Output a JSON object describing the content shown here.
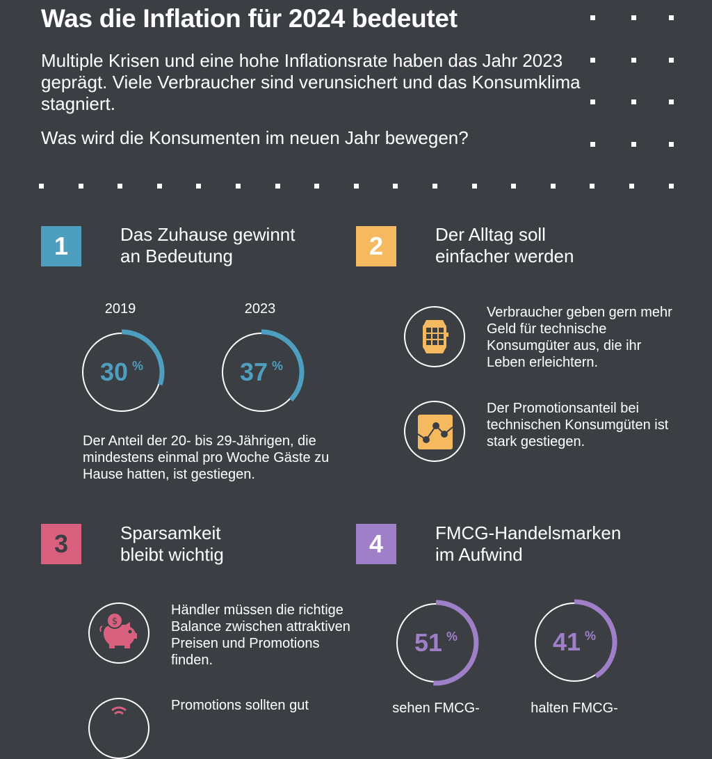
{
  "header": {
    "title": "Was die Inflation für 2024 bedeutet",
    "intro": "Multiple Krisen und eine hohe Inflationsrate haben das Jahr 2023 geprägt. Viele Verbraucher sind verunsichert und das Konsumklima stagniert.",
    "question": "Was wird die Konsumenten im neuen Jahr bewegen?"
  },
  "colors": {
    "background": "#3b3f44",
    "blue": "#4e9fbf",
    "orange": "#f5b95f",
    "pink": "#d9607f",
    "purple": "#a07fc9"
  },
  "sections": [
    {
      "number": "1",
      "title_line1": "Das Zuhause gewinnt",
      "title_line2": "an Bedeutung",
      "rings": [
        {
          "year": "2019",
          "value": 30,
          "label": "30",
          "unit": "%"
        },
        {
          "year": "2023",
          "value": 37,
          "label": "37",
          "unit": "%"
        }
      ],
      "text": "Der Anteil der 20- bis 29-Jährigen, die mindestens einmal pro Woche Gäste zu Hause hatten, ist gestiegen."
    },
    {
      "number": "2",
      "title_line1": "Der Alltag soll",
      "title_line2": "einfacher werden",
      "items": [
        {
          "icon": "smartwatch-icon",
          "text": "Verbraucher geben gern mehr Geld für technische Konsumgüter aus, die ihr Leben erleichtern."
        },
        {
          "icon": "line-chart-icon",
          "text": "Der Promotionsanteil bei technischen Konsumgüten ist stark gestiegen."
        }
      ]
    },
    {
      "number": "3",
      "title_line1": "Sparsamkeit",
      "title_line2": "bleibt wichtig",
      "items": [
        {
          "icon": "piggy-bank-icon",
          "text": "Händler müssen die richtige Balance zwischen attraktiven Preisen und Promotions finden."
        },
        {
          "icon": "signal-icon",
          "text": "Promotions sollten gut"
        }
      ]
    },
    {
      "number": "4",
      "title_line1": "FMCG-Handelsmarken",
      "title_line2": "im Aufwind",
      "rings": [
        {
          "value": 51,
          "label": "51",
          "unit": "%",
          "caption": "sehen FMCG-"
        },
        {
          "value": 41,
          "label": "41",
          "unit": "%",
          "caption": "halten FMCG-"
        }
      ]
    }
  ]
}
